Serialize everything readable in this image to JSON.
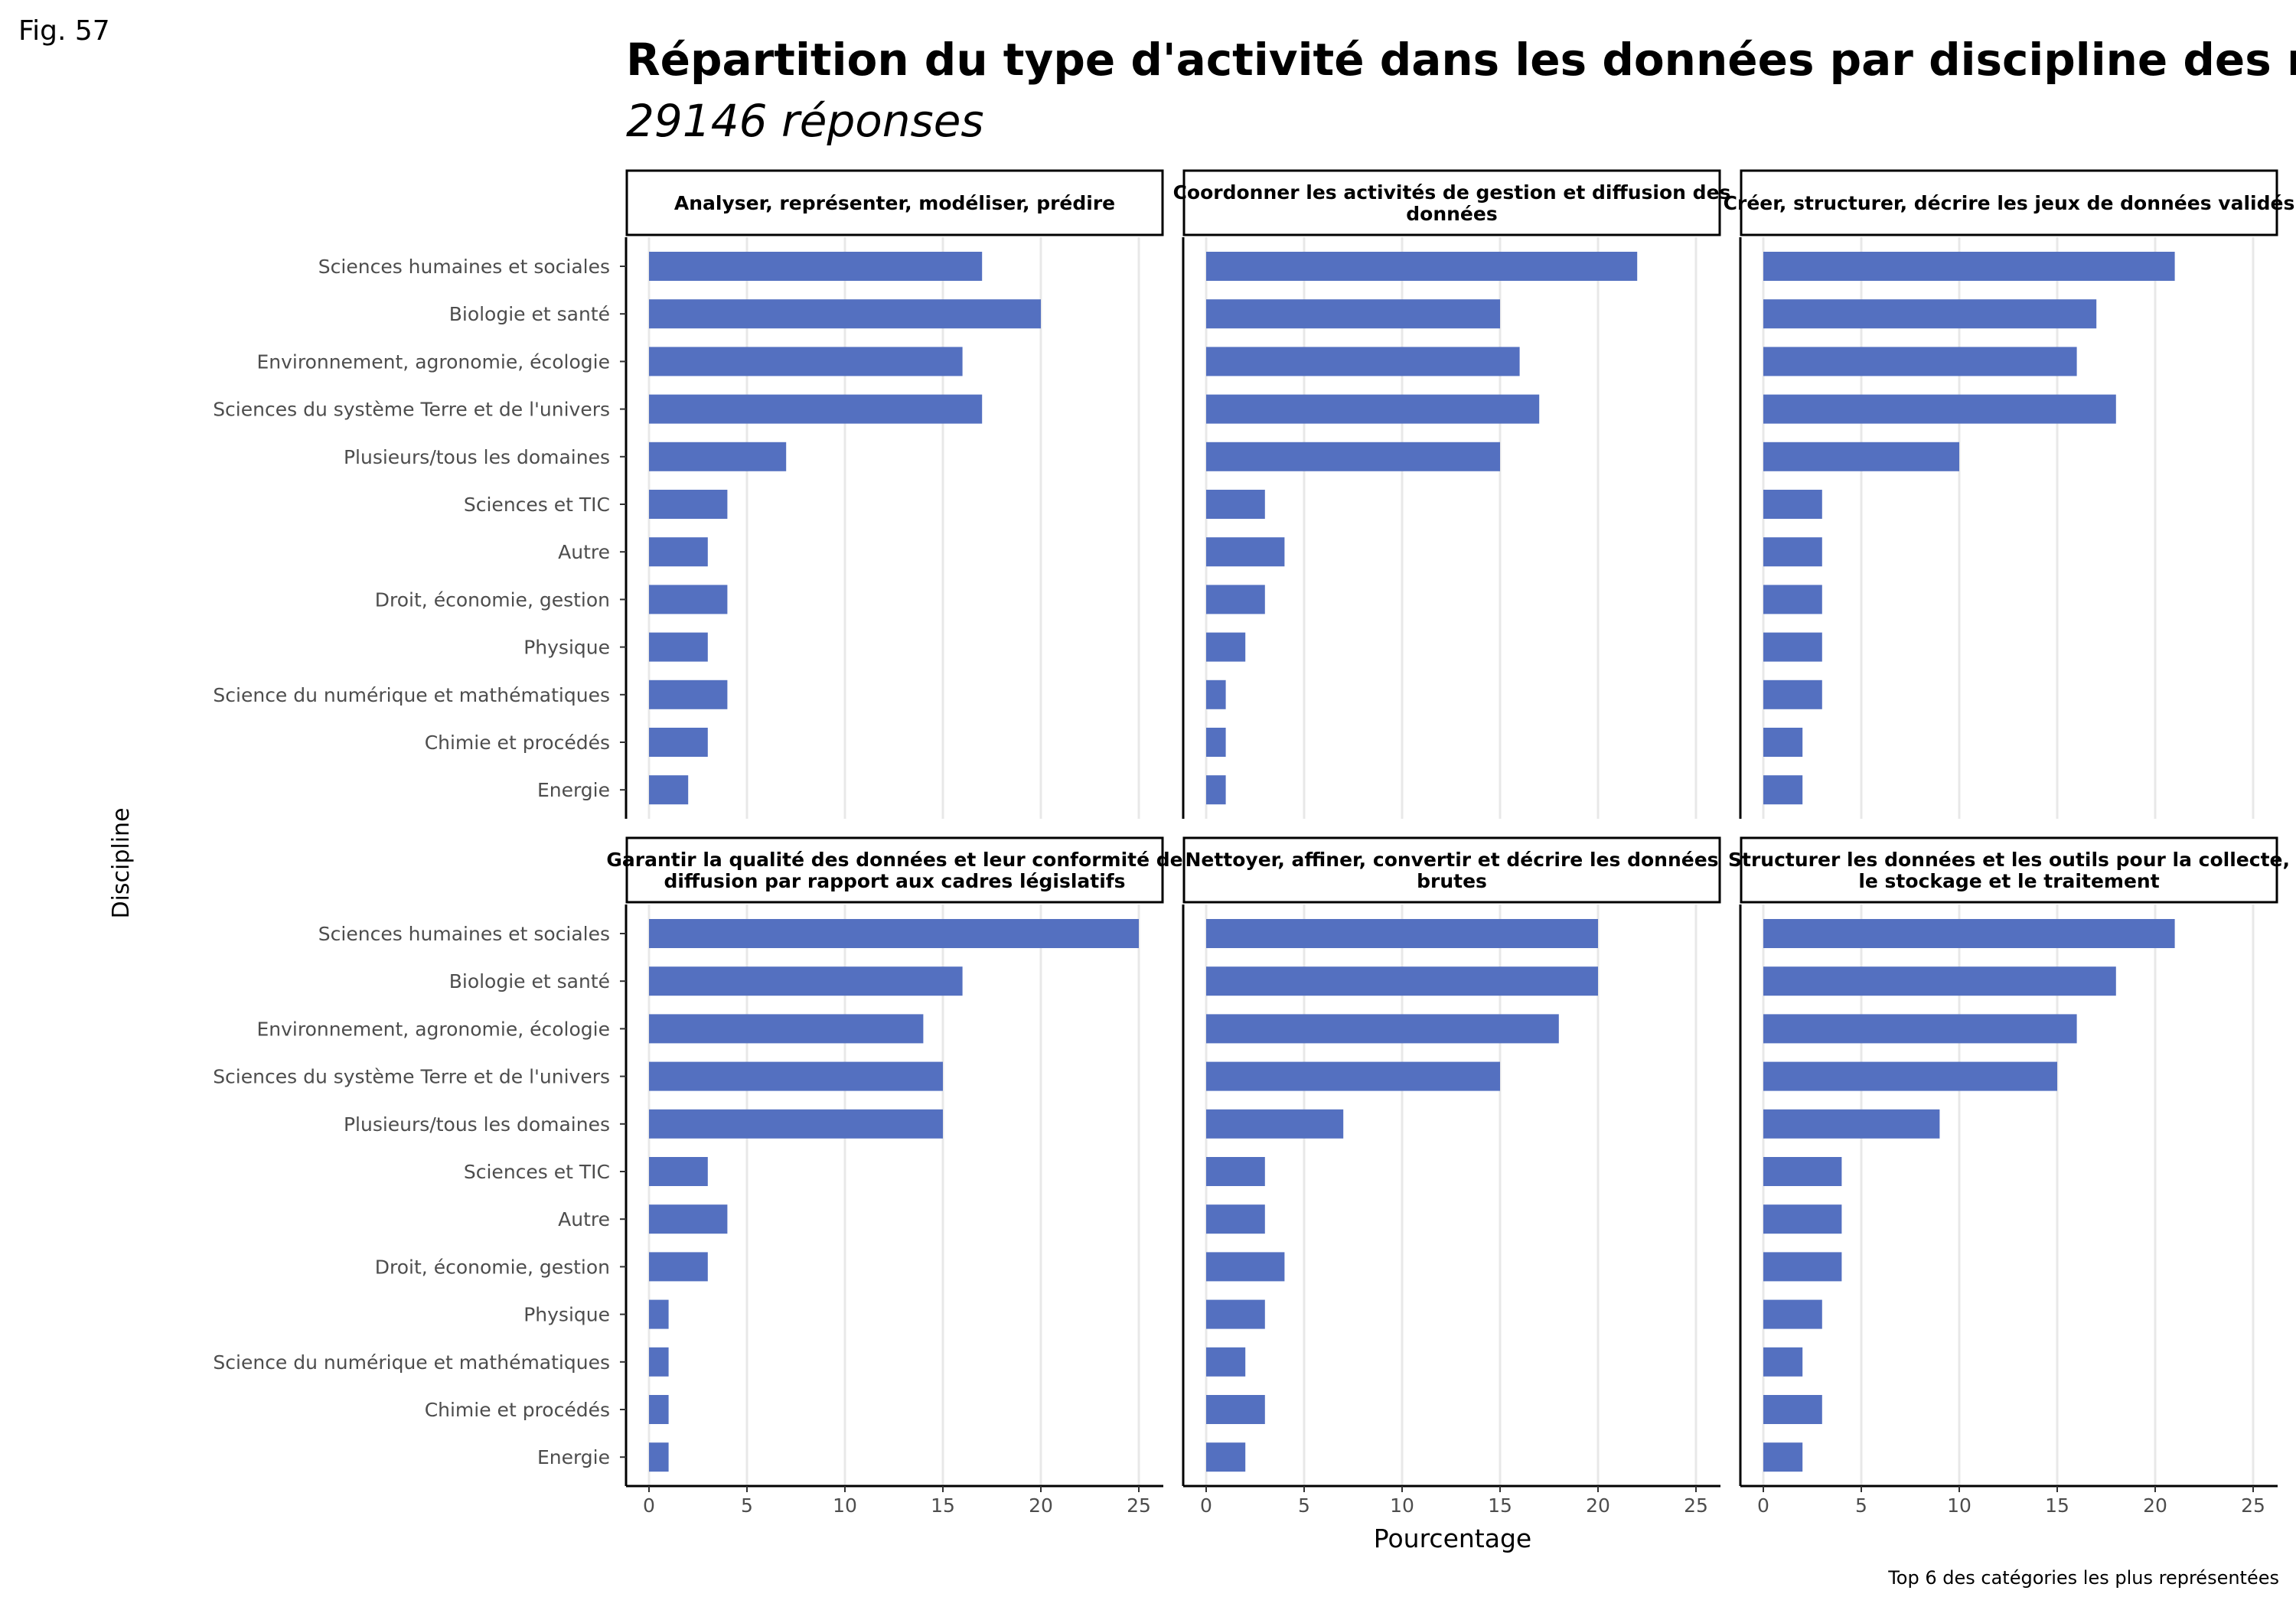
{
  "figure_label": "Fig. 57",
  "title": "Répartition du type d'activité dans les données par discipline des répondants",
  "subtitle": "29146 réponses",
  "caption": "Top 6 des catégories les plus représentées",
  "bar_color": "#5470c0",
  "chart_data": {
    "type": "bar",
    "orientation": "horizontal",
    "facet_layout": "2 rows x 3 columns",
    "xlabel": "Pourcentage",
    "ylabel": "Discipline",
    "xlim": [
      0,
      26
    ],
    "x_ticks": [
      0,
      5,
      10,
      15,
      20,
      25
    ],
    "grid": "vertical major gridlines",
    "categories": [
      "Sciences humaines et sociales",
      "Biologie et santé",
      "Environnement, agronomie, écologie",
      "Sciences du système Terre et de l'univers",
      "Plusieurs/tous les domaines",
      "Sciences et TIC",
      "Autre",
      "Droit, économie, gestion",
      "Physique",
      "Science du numérique et mathématiques",
      "Chimie et procédés",
      "Energie"
    ],
    "panels": [
      {
        "title": "Analyser, représenter, modéliser, prédire",
        "values": [
          17,
          20,
          16,
          17,
          7,
          4,
          3,
          4,
          3,
          4,
          3,
          2
        ]
      },
      {
        "title": "Coordonner les activités de gestion et diffusion des données",
        "values": [
          22,
          15,
          16,
          17,
          15,
          3,
          4,
          3,
          2,
          1,
          1,
          1
        ]
      },
      {
        "title": "Créer, structurer, décrire les jeux de données validés",
        "values": [
          21,
          17,
          16,
          18,
          10,
          3,
          3,
          3,
          3,
          3,
          2,
          2
        ]
      },
      {
        "title": "Garantir la qualité des données et leur conformité de diffusion par rapport aux cadres législatifs",
        "values": [
          25,
          16,
          14,
          15,
          15,
          3,
          4,
          3,
          1,
          1,
          1,
          1
        ]
      },
      {
        "title": "Nettoyer, affiner, convertir et décrire les données brutes",
        "values": [
          20,
          20,
          18,
          15,
          7,
          3,
          3,
          4,
          3,
          2,
          3,
          2
        ]
      },
      {
        "title": "Structurer les données et les outils pour la collecte, le stockage et le traitement",
        "values": [
          21,
          18,
          16,
          15,
          9,
          4,
          4,
          4,
          3,
          2,
          3,
          2
        ]
      }
    ]
  }
}
